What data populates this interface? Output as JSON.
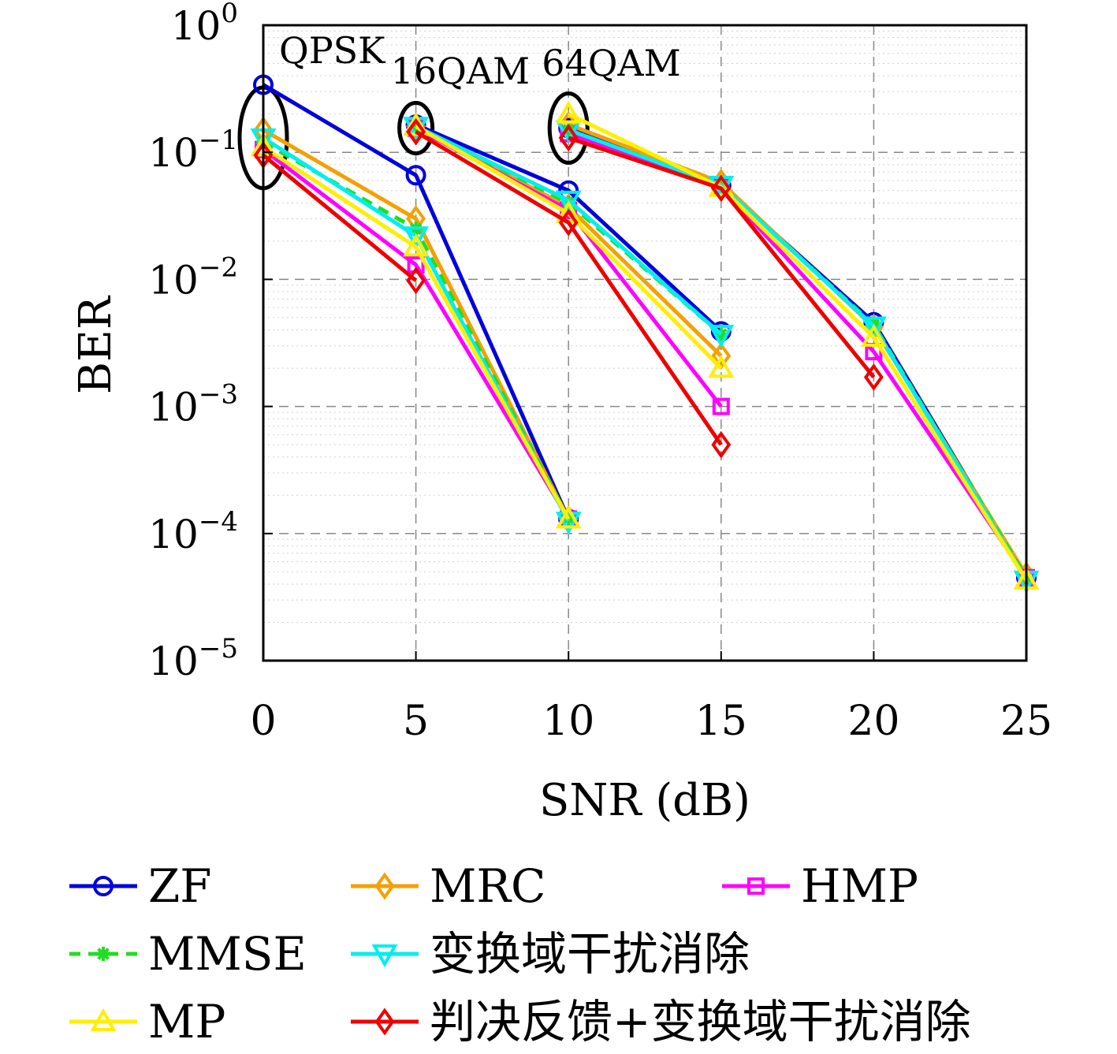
{
  "chart_data": {
    "type": "line",
    "xlabel": "SNR (dB)",
    "ylabel": "BER",
    "xlim": [
      0,
      25
    ],
    "ylim": [
      1e-05,
      1
    ],
    "yscale": "log",
    "grid": true,
    "x_ticks": [
      0,
      5,
      10,
      15,
      20,
      25
    ],
    "y_ticks": [
      {
        "value": 1,
        "base": "10",
        "exp": "0"
      },
      {
        "value": 0.1,
        "base": "10",
        "exp": "−1"
      },
      {
        "value": 0.01,
        "base": "10",
        "exp": "−2"
      },
      {
        "value": 0.001,
        "base": "10",
        "exp": "−3"
      },
      {
        "value": 0.0001,
        "base": "10",
        "exp": "−4"
      },
      {
        "value": 1e-05,
        "base": "10",
        "exp": "−5"
      }
    ],
    "annotations": [
      {
        "text": "QPSK",
        "x": 0
      },
      {
        "text": "16QAM",
        "x": 5
      },
      {
        "text": "64QAM",
        "x": 10
      }
    ],
    "legend_position": "bottom",
    "series": [
      {
        "name": "ZF",
        "color": "#0000dd",
        "marker": "circle",
        "dash": false,
        "segments": [
          [
            [
              0,
              0.34
            ],
            [
              5,
              0.066
            ],
            [
              10,
              0.00013
            ]
          ],
          [
            [
              5,
              0.165
            ],
            [
              10,
              0.05
            ],
            [
              15,
              0.0039
            ]
          ],
          [
            [
              10,
              0.155
            ],
            [
              15,
              0.055
            ],
            [
              20,
              0.0046
            ],
            [
              25,
              4.5e-05
            ]
          ]
        ]
      },
      {
        "name": "MRC",
        "color": "#f5a000",
        "marker": "diamond",
        "dash": false,
        "segments": [
          [
            [
              0,
              0.15
            ],
            [
              5,
              0.03
            ],
            [
              10,
              0.00013
            ]
          ],
          [
            [
              5,
              0.16
            ],
            [
              10,
              0.037
            ],
            [
              15,
              0.0025
            ]
          ],
          [
            [
              10,
              0.165
            ],
            [
              15,
              0.058
            ],
            [
              20,
              0.0042
            ],
            [
              25,
              4.7e-05
            ]
          ]
        ]
      },
      {
        "name": "HMP",
        "color": "#ff00ff",
        "marker": "square",
        "dash": false,
        "segments": [
          [
            [
              0,
              0.105
            ],
            [
              5,
              0.013
            ],
            [
              10,
              0.00013
            ]
          ],
          [
            [
              5,
              0.155
            ],
            [
              10,
              0.035
            ],
            [
              15,
              0.001
            ]
          ],
          [
            [
              10,
              0.14
            ],
            [
              15,
              0.053
            ],
            [
              20,
              0.0027
            ],
            [
              25,
              4.5e-05
            ]
          ]
        ]
      },
      {
        "name": "MMSE",
        "color": "#22dd22",
        "marker": "asterisk",
        "dash": true,
        "segments": [
          [
            [
              0,
              0.12
            ],
            [
              5,
              0.025
            ],
            [
              10,
              0.00013
            ]
          ],
          [
            [
              5,
              0.16
            ],
            [
              10,
              0.04
            ],
            [
              15,
              0.0037
            ]
          ],
          [
            [
              10,
              0.15
            ],
            [
              15,
              0.055
            ],
            [
              20,
              0.0044
            ],
            [
              25,
              4.5e-05
            ]
          ]
        ]
      },
      {
        "name": "变换域干扰消除",
        "color": "#00eeee",
        "marker": "triangle-down",
        "dash": false,
        "segments": [
          [
            [
              0,
              0.13
            ],
            [
              5,
              0.022
            ],
            [
              10,
              0.000125
            ]
          ],
          [
            [
              5,
              0.16
            ],
            [
              10,
              0.042
            ],
            [
              15,
              0.0037
            ]
          ],
          [
            [
              10,
              0.15
            ],
            [
              15,
              0.055
            ],
            [
              20,
              0.0043
            ],
            [
              25,
              4.3e-05
            ]
          ]
        ]
      },
      {
        "name": "MP",
        "color": "#ffee00",
        "marker": "triangle-up",
        "dash": false,
        "segments": [
          [
            [
              0,
              0.11
            ],
            [
              5,
              0.018
            ],
            [
              10,
              0.00013
            ]
          ],
          [
            [
              5,
              0.16
            ],
            [
              10,
              0.033
            ],
            [
              15,
              0.002
            ]
          ],
          [
            [
              10,
              0.2
            ],
            [
              15,
              0.053
            ],
            [
              20,
              0.0035
            ],
            [
              25,
              4.3e-05
            ]
          ]
        ]
      },
      {
        "name": "判决反馈+变换域干扰消除",
        "color": "#ee0000",
        "marker": "diamond",
        "dash": false,
        "segments": [
          [
            [
              0,
              0.095
            ],
            [
              5,
              0.0098
            ]
          ],
          [
            [
              5,
              0.145
            ],
            [
              10,
              0.028
            ],
            [
              15,
              0.0005
            ]
          ],
          [
            [
              10,
              0.13
            ],
            [
              15,
              0.052
            ],
            [
              20,
              0.0017
            ]
          ]
        ]
      }
    ]
  }
}
